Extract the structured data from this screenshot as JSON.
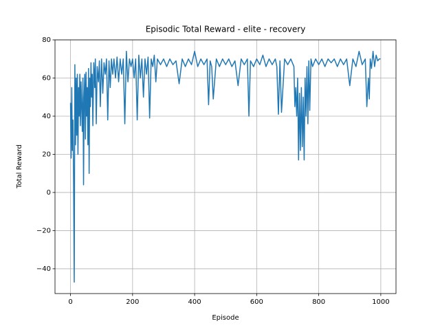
{
  "chart_data": {
    "type": "line",
    "title": "Episodic Total Reward - elite - recovery",
    "x_label": "Episode",
    "y_label": "Total Reward",
    "x": [
      0,
      2,
      4,
      6,
      8,
      10,
      12,
      14,
      16,
      18,
      20,
      22,
      24,
      26,
      28,
      30,
      32,
      34,
      36,
      38,
      40,
      42,
      44,
      46,
      48,
      50,
      52,
      54,
      56,
      58,
      60,
      62,
      64,
      66,
      68,
      70,
      72,
      75,
      78,
      80,
      83,
      86,
      90,
      93,
      96,
      100,
      104,
      108,
      112,
      116,
      120,
      124,
      128,
      132,
      136,
      140,
      145,
      150,
      155,
      160,
      165,
      170,
      175,
      180,
      185,
      190,
      195,
      200,
      205,
      210,
      215,
      220,
      225,
      230,
      235,
      240,
      245,
      250,
      255,
      260,
      265,
      270,
      275,
      280,
      290,
      300,
      310,
      320,
      330,
      340,
      350,
      360,
      370,
      380,
      390,
      400,
      410,
      420,
      430,
      440,
      445,
      450,
      455,
      460,
      470,
      480,
      490,
      500,
      510,
      520,
      530,
      540,
      550,
      560,
      570,
      575,
      580,
      590,
      600,
      610,
      620,
      630,
      640,
      650,
      660,
      665,
      670,
      675,
      680,
      690,
      700,
      710,
      720,
      723,
      726,
      729,
      732,
      735,
      738,
      741,
      744,
      747,
      750,
      753,
      756,
      759,
      762,
      765,
      768,
      771,
      775,
      780,
      790,
      800,
      810,
      820,
      830,
      840,
      850,
      860,
      870,
      880,
      890,
      900,
      910,
      920,
      930,
      940,
      950,
      955,
      960,
      963,
      966,
      970,
      975,
      980,
      985,
      990,
      995,
      999
    ],
    "series": [
      {
        "name": "Total Reward",
        "color": "#1f77b4",
        "values": [
          47,
          18,
          55,
          22,
          38,
          5,
          -47,
          67,
          25,
          60,
          30,
          62,
          20,
          55,
          40,
          62,
          35,
          58,
          45,
          32,
          60,
          4,
          50,
          62,
          28,
          63,
          40,
          55,
          25,
          65,
          10,
          60,
          45,
          68,
          50,
          62,
          35,
          68,
          55,
          70,
          36,
          66,
          58,
          69,
          45,
          70,
          52,
          68,
          62,
          70,
          38,
          69,
          55,
          70,
          62,
          70,
          60,
          71,
          58,
          70,
          62,
          70,
          36,
          74,
          58,
          70,
          66,
          70,
          60,
          70,
          38,
          72,
          60,
          70,
          50,
          70,
          62,
          71,
          39,
          70,
          66,
          72,
          58,
          70,
          67,
          70,
          66,
          70,
          67,
          69,
          57,
          70,
          66,
          70,
          67,
          74,
          66,
          70,
          67,
          70,
          46,
          69,
          66,
          49,
          70,
          66,
          70,
          67,
          70,
          66,
          69,
          56,
          70,
          67,
          70,
          40,
          69,
          66,
          70,
          67,
          72,
          66,
          70,
          67,
          70,
          66,
          41,
          69,
          42,
          70,
          67,
          70,
          66,
          45,
          55,
          40,
          60,
          17,
          52,
          22,
          55,
          24,
          50,
          17,
          60,
          40,
          66,
          36,
          69,
          43,
          70,
          66,
          70,
          67,
          70,
          66,
          70,
          68,
          70,
          66,
          70,
          67,
          70,
          56,
          70,
          66,
          74,
          67,
          70,
          45,
          60,
          49,
          70,
          65,
          74,
          66,
          72,
          69,
          70,
          70
        ]
      }
    ],
    "xlim": [
      -50,
      1049
    ],
    "ylim": [
      -53,
      80
    ],
    "xticks": [
      0,
      200,
      400,
      600,
      800,
      1000
    ],
    "yticks": [
      {
        "value": -40,
        "label": "−40"
      },
      {
        "value": -20,
        "label": "−20"
      },
      0,
      20,
      40,
      60,
      80
    ],
    "grid": true
  }
}
